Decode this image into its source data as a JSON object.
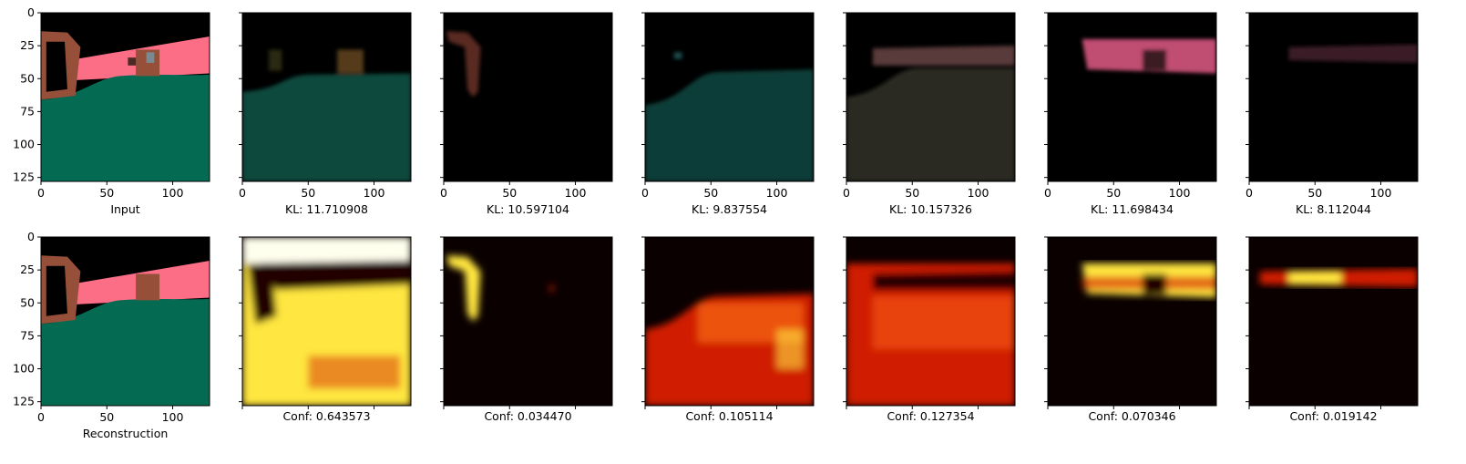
{
  "chart_data": {
    "type": "image_grid",
    "rows": 2,
    "cols": 7,
    "axis_range": [
      0,
      127
    ],
    "x_ticks": [
      "0",
      "50",
      "100"
    ],
    "y_ticks": [
      "0",
      "25",
      "50",
      "75",
      "100",
      "125"
    ],
    "row1": [
      {
        "label": "Input",
        "kind": "rgb"
      },
      {
        "label": "KL: 11.710908",
        "kind": "rgb_dim",
        "color": "#0e4a3c"
      },
      {
        "label": "KL: 10.597104",
        "kind": "rgb_dim",
        "color": "#5a2c20"
      },
      {
        "label": "KL: 9.837554",
        "kind": "rgb_dim",
        "color": "#0d3d37"
      },
      {
        "label": "KL: 10.157326",
        "kind": "rgb_dim",
        "color": "#2a2a24"
      },
      {
        "label": "KL: 11.698434",
        "kind": "rgb_dim",
        "color": "#c04e72"
      },
      {
        "label": "KL: 8.112044",
        "kind": "rgb_dim",
        "color": "#3a1e28"
      }
    ],
    "row2": [
      {
        "label": "Reconstruction",
        "kind": "rgb"
      },
      {
        "label": "Conf: 0.643573",
        "kind": "heat"
      },
      {
        "label": "Conf: 0.034470",
        "kind": "heat"
      },
      {
        "label": "Conf: 0.105114",
        "kind": "heat"
      },
      {
        "label": "Conf: 0.127354",
        "kind": "heat"
      },
      {
        "label": "Conf: 0.070346",
        "kind": "heat"
      },
      {
        "label": "Conf: 0.019142",
        "kind": "heat"
      }
    ]
  },
  "colors": {
    "floor": "#046a52",
    "wall": "#fc6d86",
    "object": "#96503a",
    "sky": "#000000",
    "heat_low": "#200000",
    "heat_mid": "#d01a00",
    "heat_high": "#ffe640",
    "heat_top": "#ffffee"
  }
}
